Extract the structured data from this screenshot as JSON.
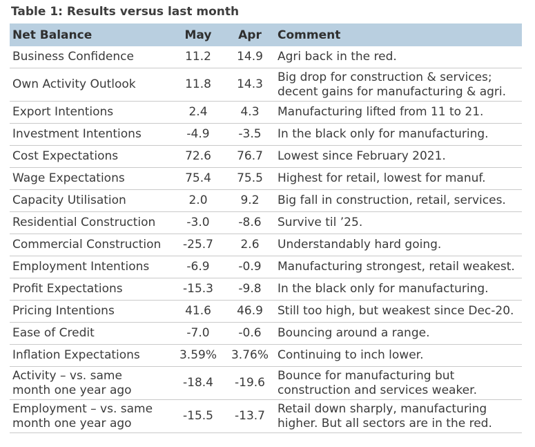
{
  "title": "Table 1: Results versus last month",
  "headers": [
    "Net Balance",
    "May",
    "Apr",
    "Comment"
  ],
  "rows": [
    {
      "label": [
        "Business Confidence"
      ],
      "may": "11.2",
      "apr": "14.9",
      "comment": [
        "Agri back in the red."
      ]
    },
    {
      "label": [
        "Own Activity Outlook"
      ],
      "may": "11.8",
      "apr": "14.3",
      "comment": [
        "Big drop for construction & services;",
        "decent gains for manufacturing & agri."
      ]
    },
    {
      "label": [
        "Export Intentions"
      ],
      "may": "2.4",
      "apr": "4.3",
      "comment": [
        "Manufacturing lifted from 11 to 21."
      ]
    },
    {
      "label": [
        "Investment Intentions"
      ],
      "may": "-4.9",
      "apr": "-3.5",
      "comment": [
        "In the black only for manufacturing."
      ]
    },
    {
      "label": [
        "Cost Expectations"
      ],
      "may": "72.6",
      "apr": "76.7",
      "comment": [
        "Lowest since February 2021."
      ]
    },
    {
      "label": [
        "Wage Expectations"
      ],
      "may": "75.4",
      "apr": "75.5",
      "comment": [
        "Highest for retail, lowest for manuf."
      ]
    },
    {
      "label": [
        "Capacity Utilisation"
      ],
      "may": "2.0",
      "apr": "9.2",
      "comment": [
        "Big fall in construction, retail, services."
      ]
    },
    {
      "label": [
        "Residential Construction"
      ],
      "may": "-3.0",
      "apr": "-8.6",
      "comment": [
        "Survive til ’25."
      ]
    },
    {
      "label": [
        "Commercial Construction"
      ],
      "may": "-25.7",
      "apr": "2.6",
      "comment": [
        "Understandably hard going."
      ]
    },
    {
      "label": [
        "Employment Intentions"
      ],
      "may": "-6.9",
      "apr": "-0.9",
      "comment": [
        "Manufacturing strongest, retail weakest."
      ]
    },
    {
      "label": [
        "Profit Expectations"
      ],
      "may": "-15.3",
      "apr": "-9.8",
      "comment": [
        "In the black only for manufacturing."
      ]
    },
    {
      "label": [
        "Pricing Intentions"
      ],
      "may": "41.6",
      "apr": "46.9",
      "comment": [
        "Still too high, but weakest since Dec-20."
      ]
    },
    {
      "label": [
        "Ease of Credit"
      ],
      "may": "-7.0",
      "apr": "-0.6",
      "comment": [
        "Bouncing around a range."
      ]
    },
    {
      "label": [
        "Inflation Expectations"
      ],
      "may": "3.59%",
      "apr": "3.76%",
      "comment": [
        "Continuing to inch lower."
      ]
    },
    {
      "label": [
        "Activity – vs. same",
        "month one year ago"
      ],
      "may": "-18.4",
      "apr": "-19.6",
      "comment": [
        "Bounce for manufacturing but",
        "construction and services weaker."
      ]
    },
    {
      "label": [
        "Employment – vs. same",
        "month one year ago"
      ],
      "may": "-15.5",
      "apr": "-13.7",
      "comment": [
        "Retail down sharply, manufacturing",
        "higher. But all sectors are in the red."
      ]
    }
  ]
}
